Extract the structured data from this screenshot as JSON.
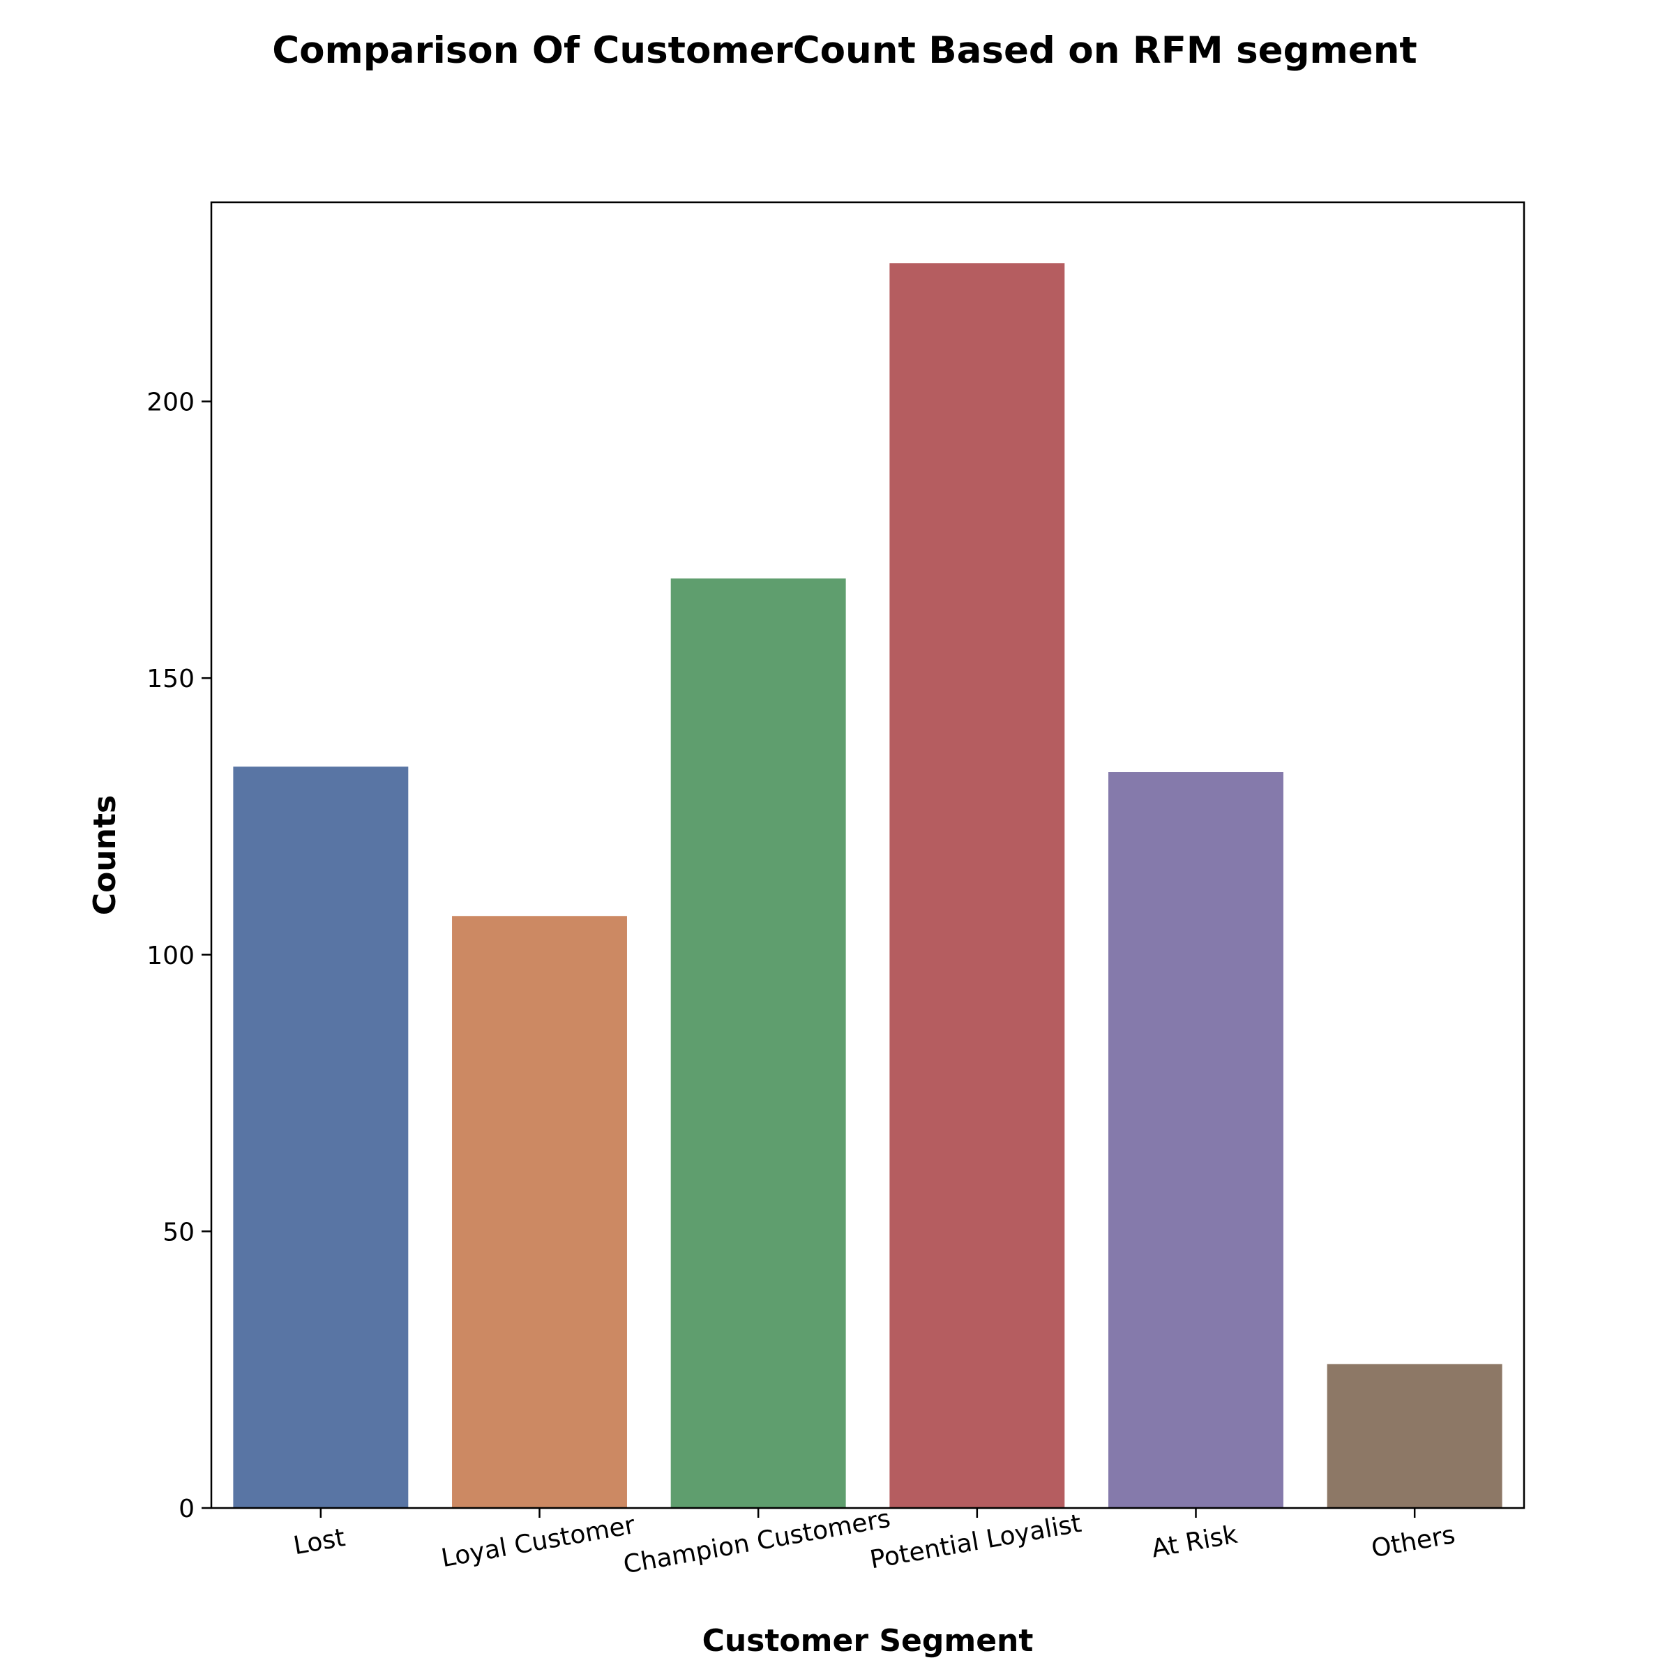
{
  "chart_data": {
    "type": "bar",
    "title": "Comparison Of CustomerCount Based on RFM segment",
    "xlabel": "Customer Segment",
    "ylabel": "Counts",
    "categories": [
      "Lost",
      "Loyal Customer",
      "Champion Customers",
      "Potential Loyalist",
      "At Risk",
      "Others"
    ],
    "values": [
      134,
      107,
      168,
      225,
      133,
      26
    ],
    "colors": [
      "#5975a4",
      "#cc8963",
      "#5f9e6e",
      "#b55d60",
      "#857aab",
      "#8d7866"
    ],
    "ylim": [
      0,
      236
    ],
    "yticks": [
      0,
      50,
      100,
      150,
      200
    ],
    "grid": false,
    "legend": "none"
  }
}
